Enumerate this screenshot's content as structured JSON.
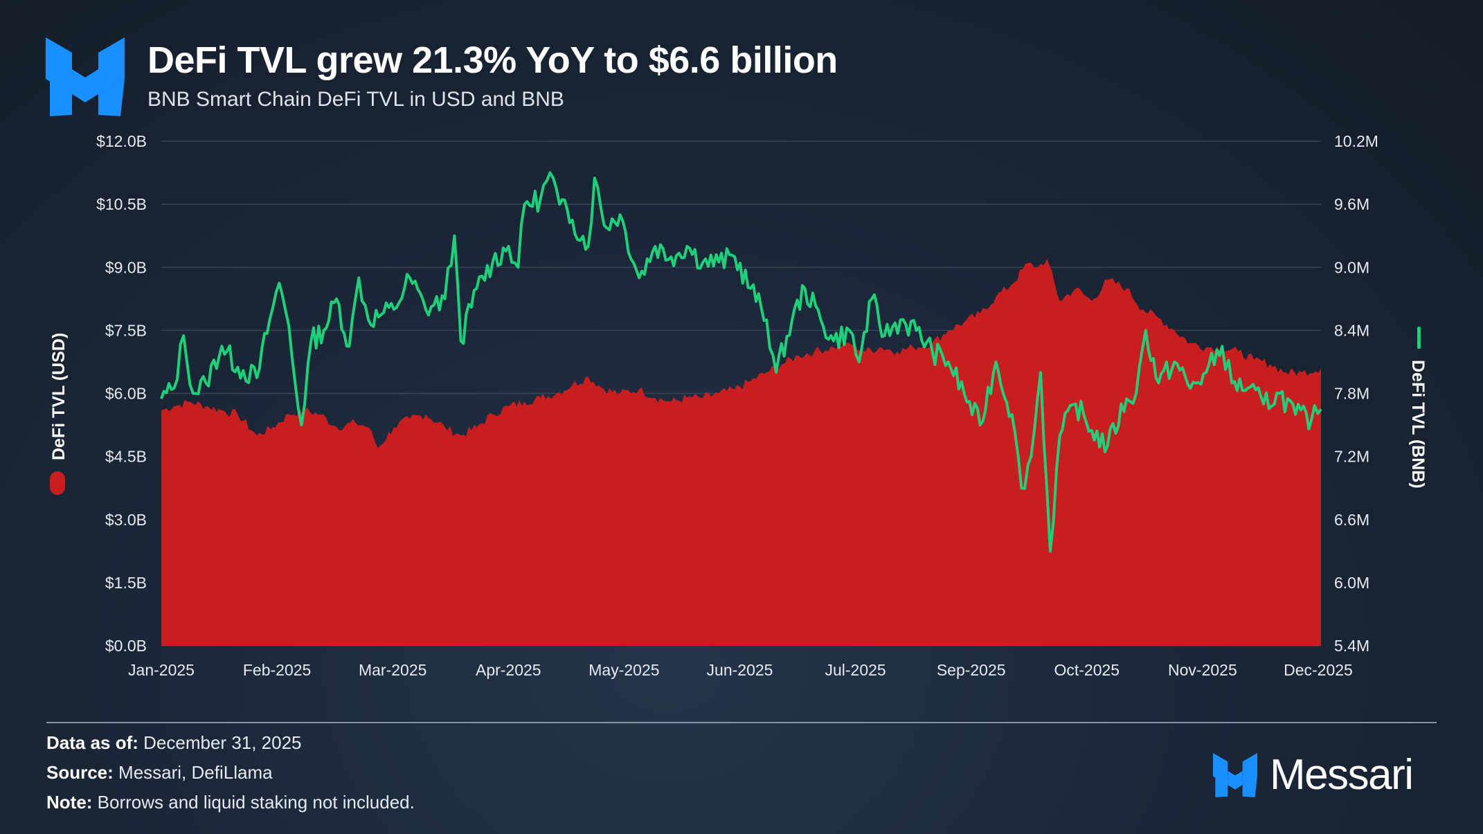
{
  "header": {
    "title": "DeFi TVL grew 21.3% YoY to $6.6 billion",
    "subtitle": "BNB Smart Chain DeFi TVL in USD and BNB"
  },
  "colors": {
    "usd_area": "#c81e1f",
    "bnb_line": "#1fd07a",
    "logo_blue": "#1a8fff"
  },
  "footer": {
    "data_as_of_label": "Data as of:",
    "data_as_of_value": "December 31, 2025",
    "source_label": "Source:",
    "source_value": "Messari, DefiLlama",
    "note_label": "Note:",
    "note_value": "Borrows and liquid staking not included."
  },
  "brand": {
    "name": "Messari",
    "logo_icon": "messari-logo-icon"
  },
  "chart_data": {
    "type": "area",
    "x_tick_labels": [
      "Jan-2025",
      "Feb-2025",
      "Mar-2025",
      "Apr-2025",
      "May-2025",
      "Jun-2025",
      "Jul-2025",
      "Sep-2025",
      "Oct-2025",
      "Nov-2025",
      "Dec-2025"
    ],
    "xlim": [
      "2025-01-01",
      "2025-12-31"
    ],
    "y_left": {
      "label": "DeFi TVL (USD)",
      "ticks": [
        "$0.0B",
        "$1.5B",
        "$3.0B",
        "$4.5B",
        "$6.0B",
        "$7.5B",
        "$9.0B",
        "$10.5B",
        "$12.0B"
      ],
      "ylim": [
        0,
        12
      ]
    },
    "y_right": {
      "label": "DeFi TVL (BNB)",
      "ticks": [
        "5.4M",
        "6.0M",
        "6.6M",
        "7.2M",
        "7.8M",
        "8.4M",
        "9.0M",
        "9.6M",
        "10.2M"
      ],
      "ylim": [
        5.4,
        10.2
      ]
    },
    "grid": true,
    "series": [
      {
        "name": "DeFi TVL (USD)",
        "axis": "left",
        "style": "area",
        "unit": "B",
        "points": [
          [
            "2025-01-01",
            5.6
          ],
          [
            "2025-01-05",
            5.7
          ],
          [
            "2025-01-10",
            5.8
          ],
          [
            "2025-01-15",
            5.7
          ],
          [
            "2025-01-20",
            5.6
          ],
          [
            "2025-01-25",
            5.5
          ],
          [
            "2025-01-31",
            5.0
          ],
          [
            "2025-02-05",
            5.2
          ],
          [
            "2025-02-10",
            5.5
          ],
          [
            "2025-02-15",
            5.6
          ],
          [
            "2025-02-20",
            5.5
          ],
          [
            "2025-02-25",
            5.2
          ],
          [
            "2025-03-03",
            5.3
          ],
          [
            "2025-03-07",
            5.2
          ],
          [
            "2025-03-10",
            4.7
          ],
          [
            "2025-03-15",
            5.2
          ],
          [
            "2025-03-20",
            5.4
          ],
          [
            "2025-03-25",
            5.5
          ],
          [
            "2025-03-31",
            5.2
          ],
          [
            "2025-04-05",
            5.0
          ],
          [
            "2025-04-10",
            5.2
          ],
          [
            "2025-04-15",
            5.5
          ],
          [
            "2025-04-20",
            5.7
          ],
          [
            "2025-04-25",
            5.8
          ],
          [
            "2025-04-30",
            5.9
          ],
          [
            "2025-05-05",
            6.0
          ],
          [
            "2025-05-10",
            6.2
          ],
          [
            "2025-05-15",
            6.4
          ],
          [
            "2025-05-20",
            6.1
          ],
          [
            "2025-05-25",
            6.0
          ],
          [
            "2025-05-31",
            6.1
          ],
          [
            "2025-06-05",
            5.9
          ],
          [
            "2025-06-10",
            5.8
          ],
          [
            "2025-06-15",
            5.9
          ],
          [
            "2025-06-20",
            5.9
          ],
          [
            "2025-06-25",
            6.0
          ],
          [
            "2025-06-30",
            6.1
          ],
          [
            "2025-07-05",
            6.3
          ],
          [
            "2025-07-10",
            6.5
          ],
          [
            "2025-07-15",
            6.7
          ],
          [
            "2025-07-20",
            6.9
          ],
          [
            "2025-07-25",
            7.0
          ],
          [
            "2025-07-31",
            7.1
          ],
          [
            "2025-08-05",
            7.2
          ],
          [
            "2025-08-10",
            7.0
          ],
          [
            "2025-08-15",
            7.1
          ],
          [
            "2025-08-20",
            7.0
          ],
          [
            "2025-08-25",
            7.1
          ],
          [
            "2025-08-31",
            7.2
          ],
          [
            "2025-09-05",
            7.5
          ],
          [
            "2025-09-10",
            7.7
          ],
          [
            "2025-09-15",
            7.9
          ],
          [
            "2025-09-20",
            8.3
          ],
          [
            "2025-09-25",
            8.6
          ],
          [
            "2025-09-30",
            9.1
          ],
          [
            "2025-10-03",
            9.0
          ],
          [
            "2025-10-06",
            9.2
          ],
          [
            "2025-10-10",
            8.2
          ],
          [
            "2025-10-15",
            8.5
          ],
          [
            "2025-10-20",
            8.2
          ],
          [
            "2025-10-25",
            8.7
          ],
          [
            "2025-10-31",
            8.5
          ],
          [
            "2025-11-05",
            8.0
          ],
          [
            "2025-11-10",
            7.8
          ],
          [
            "2025-11-15",
            7.5
          ],
          [
            "2025-11-20",
            7.2
          ],
          [
            "2025-11-25",
            7.1
          ],
          [
            "2025-11-30",
            7.1
          ],
          [
            "2025-12-05",
            7.0
          ],
          [
            "2025-12-10",
            6.8
          ],
          [
            "2025-12-15",
            6.7
          ],
          [
            "2025-12-20",
            6.5
          ],
          [
            "2025-12-25",
            6.5
          ],
          [
            "2025-12-31",
            6.6
          ]
        ]
      },
      {
        "name": "DeFi TVL (BNB)",
        "axis": "right",
        "style": "line",
        "unit": "M",
        "points": [
          [
            "2025-01-01",
            7.75
          ],
          [
            "2025-01-05",
            7.85
          ],
          [
            "2025-01-08",
            8.35
          ],
          [
            "2025-01-11",
            7.8
          ],
          [
            "2025-01-15",
            7.9
          ],
          [
            "2025-01-20",
            8.25
          ],
          [
            "2025-01-25",
            8.05
          ],
          [
            "2025-01-31",
            7.95
          ],
          [
            "2025-02-04",
            8.5
          ],
          [
            "2025-02-07",
            8.85
          ],
          [
            "2025-02-10",
            8.45
          ],
          [
            "2025-02-12",
            7.9
          ],
          [
            "2025-02-14",
            7.5
          ],
          [
            "2025-02-17",
            8.3
          ],
          [
            "2025-02-21",
            8.4
          ],
          [
            "2025-02-25",
            8.7
          ],
          [
            "2025-03-01",
            8.25
          ],
          [
            "2025-03-04",
            8.9
          ],
          [
            "2025-03-07",
            8.5
          ],
          [
            "2025-03-11",
            8.55
          ],
          [
            "2025-03-15",
            8.6
          ],
          [
            "2025-03-20",
            8.9
          ],
          [
            "2025-03-25",
            8.6
          ],
          [
            "2025-03-31",
            8.7
          ],
          [
            "2025-04-03",
            9.3
          ],
          [
            "2025-04-05",
            8.3
          ],
          [
            "2025-04-10",
            8.8
          ],
          [
            "2025-04-15",
            9.05
          ],
          [
            "2025-04-20",
            9.2
          ],
          [
            "2025-04-23",
            9.0
          ],
          [
            "2025-04-25",
            9.6
          ],
          [
            "2025-04-30",
            9.65
          ],
          [
            "2025-05-03",
            9.9
          ],
          [
            "2025-05-06",
            9.6
          ],
          [
            "2025-05-10",
            9.45
          ],
          [
            "2025-05-15",
            9.2
          ],
          [
            "2025-05-17",
            9.85
          ],
          [
            "2025-05-20",
            9.4
          ],
          [
            "2025-05-25",
            9.5
          ],
          [
            "2025-05-31",
            8.9
          ],
          [
            "2025-06-05",
            9.2
          ],
          [
            "2025-06-10",
            9.1
          ],
          [
            "2025-06-15",
            9.2
          ],
          [
            "2025-06-20",
            9.05
          ],
          [
            "2025-06-25",
            9.05
          ],
          [
            "2025-06-30",
            9.1
          ],
          [
            "2025-07-05",
            8.8
          ],
          [
            "2025-07-10",
            8.5
          ],
          [
            "2025-07-13",
            8.0
          ],
          [
            "2025-07-18",
            8.5
          ],
          [
            "2025-07-22",
            8.8
          ],
          [
            "2025-07-27",
            8.5
          ],
          [
            "2025-07-31",
            8.3
          ],
          [
            "2025-08-05",
            8.4
          ],
          [
            "2025-08-08",
            8.1
          ],
          [
            "2025-08-12",
            8.7
          ],
          [
            "2025-08-16",
            8.35
          ],
          [
            "2025-08-21",
            8.5
          ],
          [
            "2025-08-26",
            8.4
          ],
          [
            "2025-08-31",
            8.2
          ],
          [
            "2025-09-05",
            8.1
          ],
          [
            "2025-09-10",
            7.8
          ],
          [
            "2025-09-15",
            7.5
          ],
          [
            "2025-09-20",
            8.1
          ],
          [
            "2025-09-25",
            7.6
          ],
          [
            "2025-09-28",
            6.9
          ],
          [
            "2025-10-01",
            7.2
          ],
          [
            "2025-10-04",
            8.0
          ],
          [
            "2025-10-07",
            6.3
          ],
          [
            "2025-10-10",
            7.4
          ],
          [
            "2025-10-15",
            7.7
          ],
          [
            "2025-10-20",
            7.45
          ],
          [
            "2025-10-25",
            7.3
          ],
          [
            "2025-10-31",
            7.75
          ],
          [
            "2025-11-03",
            7.8
          ],
          [
            "2025-11-06",
            8.4
          ],
          [
            "2025-11-10",
            7.9
          ],
          [
            "2025-11-15",
            8.1
          ],
          [
            "2025-11-20",
            7.85
          ],
          [
            "2025-11-25",
            8.0
          ],
          [
            "2025-11-30",
            8.25
          ],
          [
            "2025-12-03",
            7.9
          ],
          [
            "2025-12-08",
            7.85
          ],
          [
            "2025-12-13",
            7.7
          ],
          [
            "2025-12-18",
            7.8
          ],
          [
            "2025-12-23",
            7.6
          ],
          [
            "2025-12-28",
            7.55
          ],
          [
            "2025-12-31",
            7.65
          ]
        ]
      }
    ]
  }
}
